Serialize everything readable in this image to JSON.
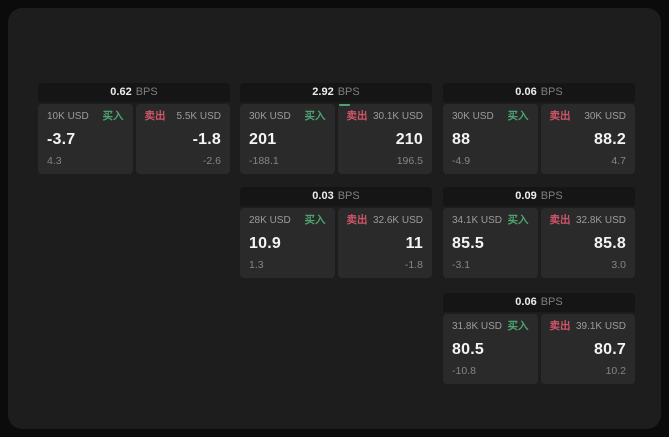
{
  "colors": {
    "page_bg": "#0b0b0c",
    "window_bg": "#1d1d1e",
    "header_bg": "#151516",
    "panel_bg": "#2a2a2b",
    "buy_green": "#4da370",
    "sell_red": "#cf5568",
    "value_white": "#f4f4f5",
    "muted_gray": "#9c9c9d"
  },
  "cards": [
    {
      "bps": "0.62",
      "unit": "BPS",
      "buy": {
        "label": "买入",
        "size": "10K USD",
        "price": "-3.7",
        "ref": "4.3"
      },
      "sell": {
        "label": "卖出",
        "size": "5.5K USD",
        "price": "-1.8",
        "ref": "-2.6"
      }
    },
    {
      "bps": "2.92",
      "unit": "BPS",
      "buy": {
        "label": "买入",
        "size": "30K USD",
        "price": "201",
        "ref": "-188.1"
      },
      "sell": {
        "label": "卖出",
        "size": "30.1K USD",
        "price": "210",
        "ref": "196.5"
      }
    },
    {
      "bps": "0.06",
      "unit": "BPS",
      "buy": {
        "label": "买入",
        "size": "30K USD",
        "price": "88",
        "ref": "-4.9"
      },
      "sell": {
        "label": "卖出",
        "size": "30K USD",
        "price": "88.2",
        "ref": "4.7"
      }
    },
    {
      "bps": "0.03",
      "unit": "BPS",
      "buy": {
        "label": "买入",
        "size": "28K USD",
        "price": "10.9",
        "ref": "1.3"
      },
      "sell": {
        "label": "卖出",
        "size": "32.6K USD",
        "price": "11",
        "ref": "-1.8"
      }
    },
    {
      "bps": "0.09",
      "unit": "BPS",
      "buy": {
        "label": "买入",
        "size": "34.1K USD",
        "price": "85.5",
        "ref": "-3.1"
      },
      "sell": {
        "label": "卖出",
        "size": "32.8K USD",
        "price": "85.8",
        "ref": "3.0"
      }
    },
    {
      "bps": "0.06",
      "unit": "BPS",
      "buy": {
        "label": "买入",
        "size": "31.8K USD",
        "price": "80.5",
        "ref": "-10.8"
      },
      "sell": {
        "label": "卖出",
        "size": "39.1K USD",
        "price": "80.7",
        "ref": "10.2"
      }
    }
  ]
}
